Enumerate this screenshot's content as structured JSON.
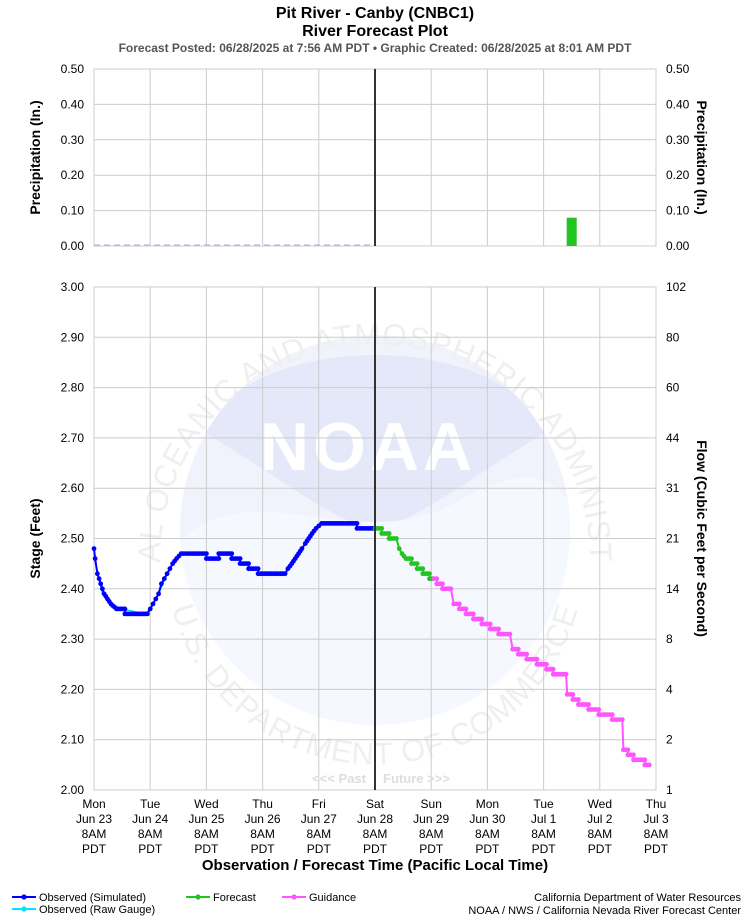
{
  "header": {
    "title": "Pit River - Canby (CNBC1)",
    "subtitle": "River Forecast Plot",
    "posted": "Forecast Posted: 06/28/2025 at 7:56 AM PDT  •  Graphic Created: 06/28/2025 at 8:01 AM PDT"
  },
  "colors": {
    "observed_sim": "#0000ff",
    "observed_raw": "#00e5ff",
    "forecast": "#22c422",
    "guidance": "#ff55ff",
    "grid": "#cccccc",
    "now_line": "#333333"
  },
  "chart_data": [
    {
      "type": "bar",
      "name": "precipitation",
      "ylabel_left": "Precipitation (In.)",
      "ylabel_right": "Precipitation (In.)",
      "ylim": [
        0,
        0.5
      ],
      "yticks": [
        "0.00",
        "0.10",
        "0.20",
        "0.30",
        "0.40",
        "0.50"
      ],
      "bars": [
        {
          "day": 8.5,
          "value": 0.08,
          "series": "forecast"
        }
      ]
    },
    {
      "type": "line",
      "name": "stage",
      "xlabel": "Observation / Forecast Time (Pacific Local Time)",
      "ylabel_left": "Stage (Feet)",
      "ylabel_right": "Flow (Cubic Feet per Second)",
      "ylim": [
        2.0,
        3.0
      ],
      "yticks": [
        "2.00",
        "2.10",
        "2.20",
        "2.30",
        "2.40",
        "2.50",
        "2.60",
        "2.70",
        "2.80",
        "2.90",
        "3.00"
      ],
      "flow_ticks": [
        {
          "stage": 2.0,
          "label": "1"
        },
        {
          "stage": 2.1,
          "label": "2"
        },
        {
          "stage": 2.2,
          "label": "4"
        },
        {
          "stage": 2.3,
          "label": "8"
        },
        {
          "stage": 2.4,
          "label": "14"
        },
        {
          "stage": 2.5,
          "label": "21"
        },
        {
          "stage": 2.6,
          "label": "31"
        },
        {
          "stage": 2.7,
          "label": "44"
        },
        {
          "stage": 2.8,
          "label": "60"
        },
        {
          "stage": 2.9,
          "label": "80"
        },
        {
          "stage": 3.0,
          "label": "102"
        }
      ],
      "x_ticks": [
        [
          "Mon",
          "Jun 23",
          "8AM",
          "PDT"
        ],
        [
          "Tue",
          "Jun 24",
          "8AM",
          "PDT"
        ],
        [
          "Wed",
          "Jun 25",
          "8AM",
          "PDT"
        ],
        [
          "Thu",
          "Jun 26",
          "8AM",
          "PDT"
        ],
        [
          "Fri",
          "Jun 27",
          "8AM",
          "PDT"
        ],
        [
          "Sat",
          "Jun 28",
          "8AM",
          "PDT"
        ],
        [
          "Sun",
          "Jun 29",
          "8AM",
          "PDT"
        ],
        [
          "Mon",
          "Jun 30",
          "8AM",
          "PDT"
        ],
        [
          "Tue",
          "Jul 1",
          "8AM",
          "PDT"
        ],
        [
          "Wed",
          "Jul 2",
          "8AM",
          "PDT"
        ],
        [
          "Thu",
          "Jul 3",
          "8AM",
          "PDT"
        ]
      ],
      "now_day": 5.0,
      "past_label": "<<< Past",
      "future_label": "Future >>>",
      "series": [
        {
          "name": "Observed (Raw Gauge)",
          "key": "observed_raw",
          "points": [
            [
              0.0,
              2.47
            ],
            [
              0.05,
              2.44
            ],
            [
              0.15,
              2.39
            ],
            [
              0.3,
              2.37
            ],
            [
              0.5,
              2.36
            ],
            [
              0.9,
              2.35
            ],
            [
              1.0,
              2.36
            ],
            [
              1.15,
              2.39
            ],
            [
              1.3,
              2.43
            ],
            [
              1.45,
              2.46
            ],
            [
              1.55,
              2.47
            ]
          ]
        },
        {
          "name": "Observed (Simulated)",
          "key": "observed_sim",
          "points": [
            [
              0.0,
              2.48
            ],
            [
              0.02,
              2.46
            ],
            [
              0.06,
              2.43
            ],
            [
              0.12,
              2.41
            ],
            [
              0.18,
              2.39
            ],
            [
              0.24,
              2.38
            ],
            [
              0.3,
              2.37
            ],
            [
              0.4,
              2.36
            ],
            [
              0.55,
              2.36
            ],
            [
              0.55,
              2.35
            ],
            [
              0.95,
              2.35
            ],
            [
              1.0,
              2.36
            ],
            [
              1.05,
              2.37
            ],
            [
              1.1,
              2.38
            ],
            [
              1.15,
              2.39
            ],
            [
              1.2,
              2.41
            ],
            [
              1.25,
              2.42
            ],
            [
              1.3,
              2.43
            ],
            [
              1.35,
              2.44
            ],
            [
              1.4,
              2.45
            ],
            [
              1.47,
              2.46
            ],
            [
              1.55,
              2.47
            ],
            [
              2.0,
              2.47
            ],
            [
              2.0,
              2.46
            ],
            [
              2.22,
              2.46
            ],
            [
              2.22,
              2.47
            ],
            [
              2.45,
              2.47
            ],
            [
              2.45,
              2.46
            ],
            [
              2.6,
              2.46
            ],
            [
              2.6,
              2.45
            ],
            [
              2.75,
              2.45
            ],
            [
              2.75,
              2.44
            ],
            [
              2.92,
              2.44
            ],
            [
              2.92,
              2.43
            ],
            [
              3.4,
              2.43
            ],
            [
              3.45,
              2.44
            ],
            [
              3.52,
              2.45
            ],
            [
              3.58,
              2.46
            ],
            [
              3.64,
              2.47
            ],
            [
              3.7,
              2.48
            ],
            [
              3.76,
              2.49
            ],
            [
              3.82,
              2.5
            ],
            [
              3.88,
              2.51
            ],
            [
              3.95,
              2.52
            ],
            [
              4.05,
              2.53
            ],
            [
              4.68,
              2.53
            ],
            [
              4.68,
              2.52
            ],
            [
              5.0,
              2.52
            ]
          ]
        },
        {
          "name": "Forecast",
          "key": "forecast",
          "points": [
            [
              5.0,
              2.52
            ],
            [
              5.12,
              2.52
            ],
            [
              5.12,
              2.51
            ],
            [
              5.25,
              2.51
            ],
            [
              5.25,
              2.5
            ],
            [
              5.38,
              2.5
            ],
            [
              5.43,
              2.48
            ],
            [
              5.48,
              2.47
            ],
            [
              5.55,
              2.46
            ],
            [
              5.65,
              2.46
            ],
            [
              5.65,
              2.45
            ],
            [
              5.75,
              2.45
            ],
            [
              5.75,
              2.44
            ],
            [
              5.85,
              2.44
            ],
            [
              5.85,
              2.43
            ],
            [
              5.97,
              2.43
            ],
            [
              5.97,
              2.42
            ],
            [
              6.05,
              2.42
            ]
          ]
        },
        {
          "name": "Guidance",
          "key": "guidance",
          "points": [
            [
              6.05,
              2.42
            ],
            [
              6.1,
              2.42
            ],
            [
              6.1,
              2.41
            ],
            [
              6.2,
              2.41
            ],
            [
              6.2,
              2.4
            ],
            [
              6.35,
              2.4
            ],
            [
              6.4,
              2.37
            ],
            [
              6.5,
              2.37
            ],
            [
              6.5,
              2.36
            ],
            [
              6.62,
              2.36
            ],
            [
              6.62,
              2.35
            ],
            [
              6.75,
              2.35
            ],
            [
              6.75,
              2.34
            ],
            [
              6.9,
              2.34
            ],
            [
              6.9,
              2.33
            ],
            [
              7.05,
              2.33
            ],
            [
              7.05,
              2.32
            ],
            [
              7.2,
              2.32
            ],
            [
              7.2,
              2.31
            ],
            [
              7.4,
              2.31
            ],
            [
              7.45,
              2.28
            ],
            [
              7.55,
              2.28
            ],
            [
              7.55,
              2.27
            ],
            [
              7.7,
              2.27
            ],
            [
              7.7,
              2.26
            ],
            [
              7.88,
              2.26
            ],
            [
              7.88,
              2.25
            ],
            [
              8.05,
              2.25
            ],
            [
              8.05,
              2.24
            ],
            [
              8.17,
              2.24
            ],
            [
              8.17,
              2.23
            ],
            [
              8.4,
              2.23
            ],
            [
              8.42,
              2.19
            ],
            [
              8.52,
              2.19
            ],
            [
              8.52,
              2.18
            ],
            [
              8.62,
              2.18
            ],
            [
              8.62,
              2.17
            ],
            [
              8.8,
              2.17
            ],
            [
              8.8,
              2.16
            ],
            [
              8.98,
              2.16
            ],
            [
              8.98,
              2.15
            ],
            [
              9.22,
              2.15
            ],
            [
              9.22,
              2.14
            ],
            [
              9.4,
              2.14
            ],
            [
              9.42,
              2.08
            ],
            [
              9.5,
              2.08
            ],
            [
              9.5,
              2.07
            ],
            [
              9.6,
              2.07
            ],
            [
              9.6,
              2.06
            ],
            [
              9.8,
              2.06
            ],
            [
              9.8,
              2.05
            ],
            [
              9.92,
              2.05
            ]
          ]
        }
      ]
    }
  ],
  "watermark": {
    "logo_text": "NOAA",
    "ring_text_top": "NATIONAL OCEANIC AND ATMOSPHERIC ADMINISTRATION",
    "ring_text_bottom": "U.S. DEPARTMENT OF COMMERCE"
  },
  "legend": {
    "observed_sim": "Observed (Simulated)",
    "observed_raw": "Observed (Raw Gauge)",
    "forecast": "Forecast",
    "guidance": "Guidance"
  },
  "credits": {
    "line1": "California Department of Water Resources",
    "line2": "NOAA / NWS / California Nevada River Forecast Center"
  }
}
